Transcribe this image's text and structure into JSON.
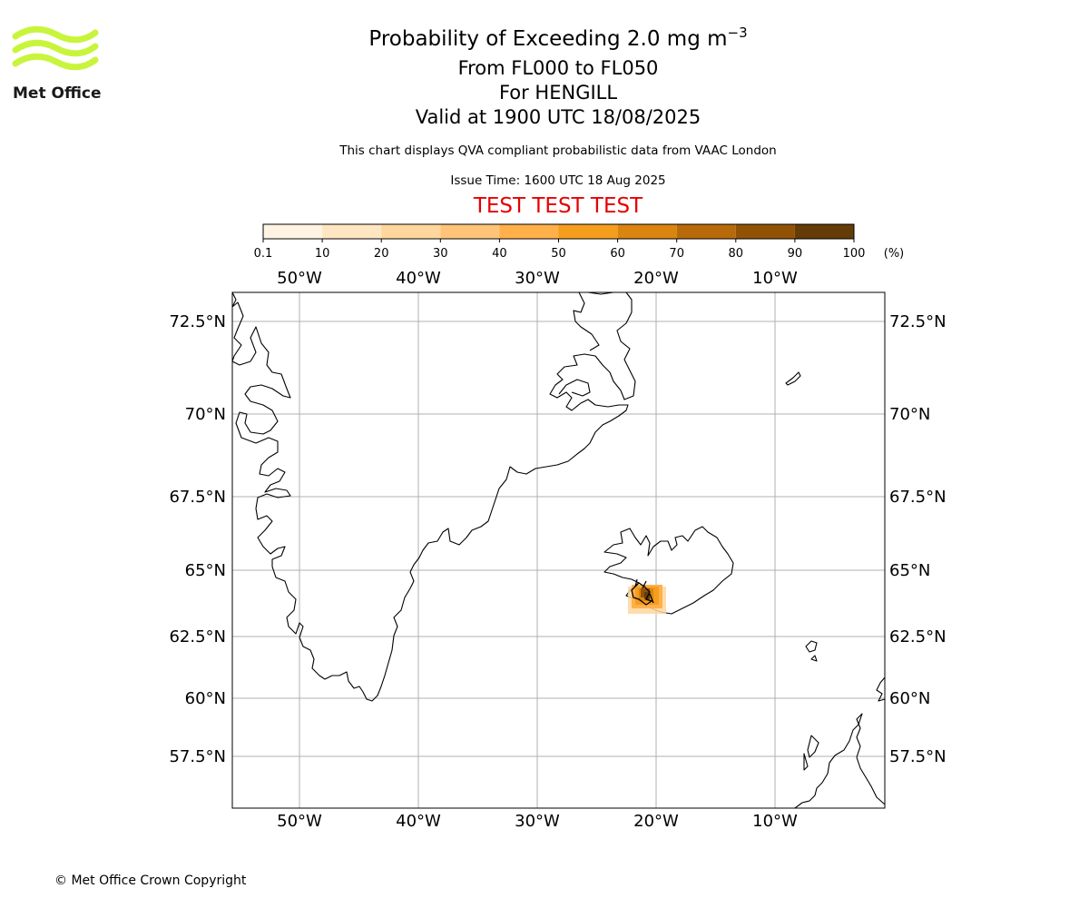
{
  "header": {
    "title_prefix": "Probability of Exceeding 2.0 mg m",
    "title_exponent": "−3",
    "level_range": "From FL000 to FL050",
    "volcano": "For HENGILL",
    "valid_time": "Valid at 1900 UTC 18/08/2025",
    "subtitle": "This chart displays QVA compliant probabilistic data from VAAC London",
    "issue_time": "Issue Time: 1600 UTC 18 Aug 2025",
    "test_banner": "TEST TEST TEST"
  },
  "logo": {
    "text": "Met Office",
    "accent_color": "#c8f53c"
  },
  "colorbar": {
    "unit_label": "(%)",
    "ticks": [
      "0.1",
      "10",
      "20",
      "30",
      "40",
      "50",
      "60",
      "70",
      "80",
      "90",
      "100"
    ],
    "colors": [
      "#fff4e3",
      "#ffe6c2",
      "#ffd69c",
      "#ffc478",
      "#ffb04a",
      "#f59e1e",
      "#d98510",
      "#b86a0a",
      "#925206",
      "#643c08"
    ]
  },
  "map": {
    "lon_labels": [
      "50°W",
      "40°W",
      "30°W",
      "20°W",
      "10°W"
    ],
    "lat_labels": [
      "72.5°N",
      "70°N",
      "67.5°N",
      "65°N",
      "62.5°N",
      "60°N",
      "57.5°N"
    ],
    "gridline_color": "#b0b0b0",
    "coastline_color": "#000000"
  },
  "footer": {
    "copyright": "© Met Office Crown Copyright"
  }
}
